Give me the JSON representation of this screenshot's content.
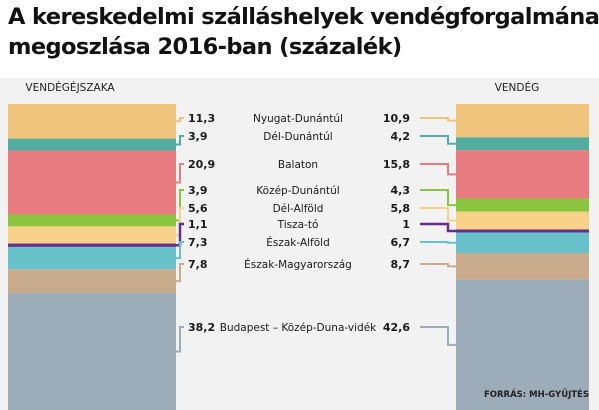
{
  "title_line1": "A kereskedelmi szálláshelyek vendégforgalmának",
  "title_line2": "megoszlása 2016-ban (százalék)",
  "source": "FORRÁS: MH-GYŰJTÉS",
  "chart_data": {
    "type": "stacked-bar",
    "unit": "százalék",
    "columns": [
      "VENDÉGÉJSZAKA",
      "VENDÉG"
    ],
    "categories": [
      "Nyugat-Dunántúl",
      "Dél-Dunántúl",
      "Balaton",
      "Közép-Dunántúl",
      "Dél-Alföld",
      "Tisza-tó",
      "Észak-Alföld",
      "Észak-Magyarország",
      "Budapest – Közép-Duna-vidék"
    ],
    "series": [
      {
        "name": "VENDÉGÉJSZAKA",
        "values": [
          11.3,
          3.9,
          20.9,
          3.9,
          5.6,
          1.1,
          7.3,
          7.8,
          38.2
        ],
        "labels": [
          "11,3",
          "3,9",
          "20,9",
          "3,9",
          "5,6",
          "1,1",
          "7,3",
          "7,8",
          "38,2"
        ]
      },
      {
        "name": "VENDÉG",
        "values": [
          10.9,
          4.2,
          15.8,
          4.3,
          5.8,
          1.0,
          6.7,
          8.7,
          42.6
        ],
        "labels": [
          "10,9",
          "4,2",
          "15,8",
          "4,3",
          "5,8",
          "1",
          "6,7",
          "8,7",
          "42,6"
        ]
      }
    ],
    "colors": [
      "#f0c47c",
      "#52ada0",
      "#e87b80",
      "#8bc53f",
      "#f9d28a",
      "#662d91",
      "#67c1c9",
      "#c8ac8c",
      "#9cacb8"
    ]
  }
}
